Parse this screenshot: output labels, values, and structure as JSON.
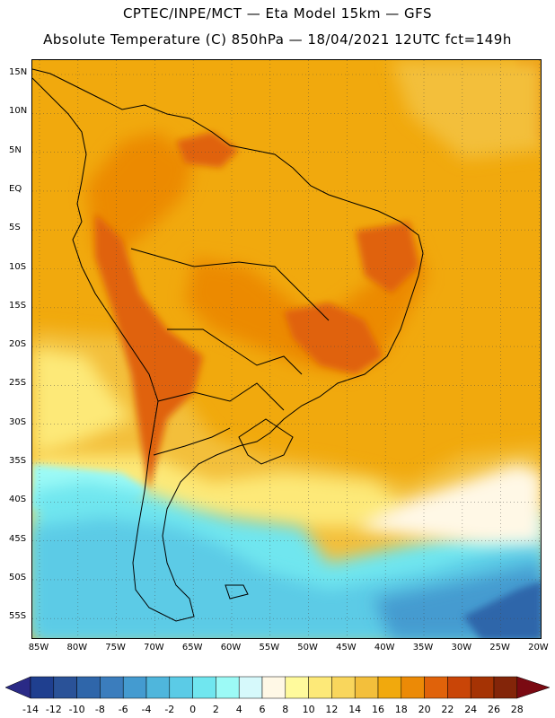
{
  "header": {
    "line1": "CPTEC/INPE/MCT —  Eta Model 15km — GFS",
    "line2": "Absolute Temperature (C) 850hPa — 18/04/2021 12UTC fct=149h"
  },
  "map": {
    "region": "South America",
    "variable": "Absolute Temperature (C) 850hPa",
    "lat_labels": [
      "15N",
      "10N",
      "5N",
      "EQ",
      "5S",
      "10S",
      "15S",
      "20S",
      "25S",
      "30S",
      "35S",
      "40S",
      "45S",
      "50S",
      "55S"
    ],
    "lon_labels": [
      "85W",
      "80W",
      "75W",
      "70W",
      "65W",
      "60W",
      "55W",
      "50W",
      "45W",
      "40W",
      "35W",
      "30W",
      "25W",
      "20W"
    ],
    "grid": "dotted"
  },
  "colorbar": {
    "labels": [
      "-14",
      "-12",
      "-10",
      "-8",
      "-6",
      "-4",
      "-2",
      "0",
      "2",
      "4",
      "6",
      "8",
      "10",
      "12",
      "14",
      "16",
      "18",
      "20",
      "22",
      "24",
      "26",
      "28"
    ],
    "colors": [
      "#1f3f8f",
      "#2a5298",
      "#2f66aa",
      "#3b7dbd",
      "#449bd0",
      "#4fb6dc",
      "#5bcbe6",
      "#70e6ef",
      "#9cfaf6",
      "#d6f9fb",
      "#fff8e6",
      "#fffa9c",
      "#fde978",
      "#f9d65c",
      "#f3bf3b",
      "#f1a90d",
      "#ec8a06",
      "#e0620a",
      "#c94507",
      "#a53304",
      "#832509"
    ],
    "arrow_left_color": "#2a2a86",
    "arrow_right_color": "#7a0a12"
  }
}
